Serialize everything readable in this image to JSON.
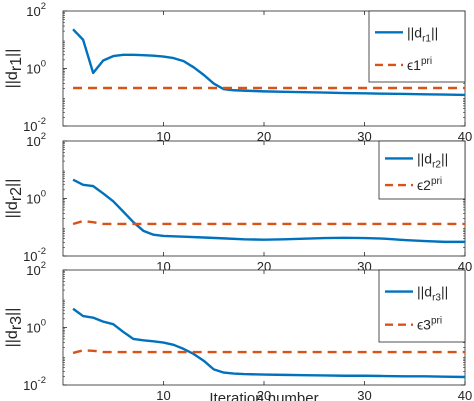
{
  "chart_data": [
    {
      "type": "line",
      "ylabel_prefix": "||d",
      "ylabel_sub": "r1",
      "ylabel_suffix": "||",
      "xlim": [
        0,
        40
      ],
      "ylim_exp": [
        -2,
        2
      ],
      "yscale": "log",
      "xticks": [
        "10",
        "20",
        "30",
        "40"
      ],
      "yticks": [
        {
          "base": "10",
          "exp": "-2"
        },
        {
          "base": "10",
          "exp": "0"
        },
        {
          "base": "10",
          "exp": "2"
        }
      ],
      "legend_position": "top-right",
      "series": [
        {
          "name": "||d",
          "name_sub": "r1",
          "name_suffix": "||",
          "color": "#0072BD",
          "style": "solid",
          "x": [
            1,
            2,
            3,
            4,
            5,
            6,
            7,
            8,
            9,
            10,
            11,
            12,
            13,
            14,
            15,
            16,
            17,
            18,
            19,
            20,
            22,
            24,
            26,
            28,
            30,
            32,
            34,
            36,
            38,
            40
          ],
          "y": [
            23,
            10,
            0.7,
            1.9,
            2.7,
            3.0,
            3.0,
            2.9,
            2.8,
            2.6,
            2.3,
            1.8,
            1.1,
            0.6,
            0.3,
            0.19,
            0.175,
            0.17,
            0.165,
            0.16,
            0.155,
            0.15,
            0.145,
            0.14,
            0.137,
            0.133,
            0.13,
            0.127,
            0.124,
            0.12
          ]
        },
        {
          "name": "ϵ1",
          "name_sup": "pri",
          "color": "#D95319",
          "style": "dashed",
          "x": [
            1,
            40
          ],
          "y": [
            0.21,
            0.21
          ]
        }
      ]
    },
    {
      "type": "line",
      "ylabel_prefix": "||d",
      "ylabel_sub": "r2",
      "ylabel_suffix": "||",
      "xlim": [
        0,
        40
      ],
      "ylim_exp": [
        -2,
        2
      ],
      "yscale": "log",
      "xticks": [
        "10",
        "20",
        "30",
        "40"
      ],
      "yticks": [
        {
          "base": "10",
          "exp": "-2"
        },
        {
          "base": "10",
          "exp": "0"
        },
        {
          "base": "10",
          "exp": "2"
        }
      ],
      "legend_position": "top-right",
      "series": [
        {
          "name": "||d",
          "name_sub": "r2",
          "name_suffix": "||",
          "color": "#0072BD",
          "style": "solid",
          "x": [
            1,
            2,
            3,
            4,
            5,
            6,
            7,
            8,
            9,
            10,
            12,
            14,
            16,
            18,
            20,
            22,
            24,
            26,
            28,
            30,
            32,
            34,
            36,
            38,
            40
          ],
          "y": [
            4.5,
            3.0,
            2.7,
            1.5,
            0.8,
            0.35,
            0.15,
            0.075,
            0.055,
            0.05,
            0.047,
            0.044,
            0.041,
            0.038,
            0.037,
            0.038,
            0.04,
            0.042,
            0.043,
            0.042,
            0.04,
            0.036,
            0.033,
            0.031,
            0.031
          ]
        },
        {
          "name": "ϵ2",
          "name_sup": "pri",
          "color": "#D95319",
          "style": "dashed",
          "x": [
            1,
            2,
            3,
            4,
            5,
            40
          ],
          "y": [
            0.13,
            0.165,
            0.15,
            0.13,
            0.13,
            0.13
          ]
        }
      ]
    },
    {
      "type": "line",
      "ylabel_prefix": "||d",
      "ylabel_sub": "r3",
      "ylabel_suffix": "||",
      "xlim": [
        0,
        40
      ],
      "ylim_exp": [
        -2,
        2
      ],
      "yscale": "log",
      "xticks": [
        "10",
        "20",
        "30",
        "40"
      ],
      "yticks": [
        {
          "base": "10",
          "exp": "-2"
        },
        {
          "base": "10",
          "exp": "0"
        },
        {
          "base": "10",
          "exp": "2"
        }
      ],
      "xlabel": "Iteration number",
      "legend_position": "top-right",
      "series": [
        {
          "name": "||d",
          "name_sub": "r3",
          "name_suffix": "||",
          "color": "#0072BD",
          "style": "solid",
          "x": [
            1,
            2,
            3,
            4,
            5,
            6,
            7,
            8,
            9,
            10,
            11,
            12,
            13,
            14,
            15,
            16,
            17,
            18,
            20,
            22,
            24,
            26,
            28,
            30,
            32,
            34,
            36,
            38,
            40
          ],
          "y": [
            4.5,
            2.5,
            2.2,
            1.6,
            1.3,
            0.7,
            0.4,
            0.36,
            0.33,
            0.3,
            0.25,
            0.18,
            0.12,
            0.07,
            0.035,
            0.027,
            0.025,
            0.024,
            0.023,
            0.0225,
            0.022,
            0.0215,
            0.021,
            0.021,
            0.0205,
            0.02,
            0.02,
            0.0195,
            0.019
          ]
        },
        {
          "name": "ϵ3",
          "name_sup": "pri",
          "color": "#D95319",
          "style": "dashed",
          "x": [
            1,
            2,
            3,
            4,
            5,
            40
          ],
          "y": [
            0.13,
            0.16,
            0.155,
            0.14,
            0.14,
            0.14
          ]
        }
      ]
    }
  ]
}
